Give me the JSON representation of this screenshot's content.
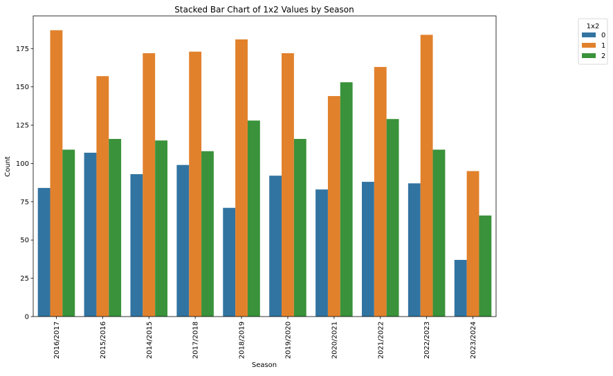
{
  "chart_data": {
    "type": "bar",
    "title": "Stacked Bar Chart of 1x2 Values by Season",
    "xlabel": "Season",
    "ylabel": "Count",
    "categories": [
      "2016/2017",
      "2015/2016",
      "2014/2015",
      "2017/2018",
      "2018/2019",
      "2019/2020",
      "2020/2021",
      "2021/2022",
      "2022/2023",
      "2023/2024"
    ],
    "series": [
      {
        "name": "0",
        "color": "#3274a1",
        "values": [
          84,
          107,
          93,
          99,
          71,
          92,
          83,
          88,
          87,
          37
        ]
      },
      {
        "name": "1",
        "color": "#e1812c",
        "values": [
          187,
          157,
          172,
          173,
          181,
          172,
          144,
          163,
          184,
          95
        ]
      },
      {
        "name": "2",
        "color": "#3a923a",
        "values": [
          109,
          116,
          115,
          108,
          128,
          116,
          153,
          129,
          109,
          66
        ]
      }
    ],
    "ylim": [
      0,
      196.35
    ],
    "yticks": [
      0,
      25,
      50,
      75,
      100,
      125,
      150,
      175
    ],
    "legend_title": "1x2",
    "legend_position": "upper-right-outside",
    "grid": false
  }
}
